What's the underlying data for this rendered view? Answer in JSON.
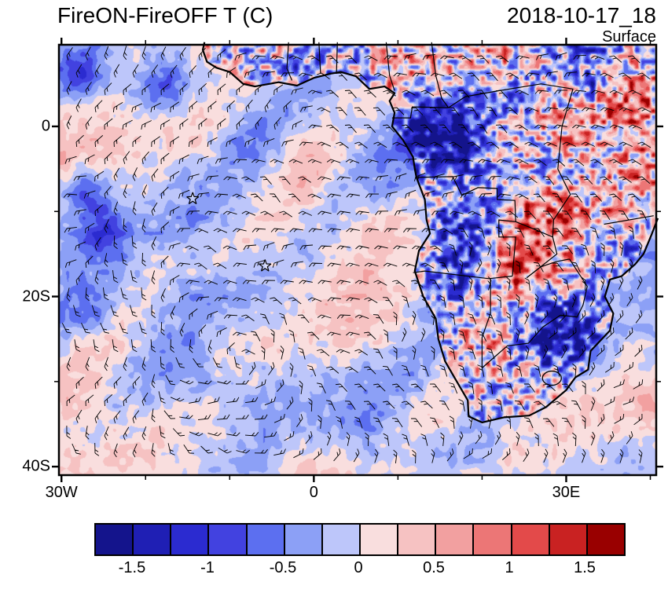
{
  "header": {
    "title": "FireON-FireOFF T (C)",
    "date": "2018-10-17_18",
    "level": "Surface"
  },
  "axes": {
    "y_ticks": [
      {
        "label": "0",
        "lat": 0
      },
      {
        "label": "20S",
        "lat": -20
      },
      {
        "label": "40S",
        "lat": -40
      }
    ],
    "x_ticks": [
      {
        "label": "30W",
        "lon": -30
      },
      {
        "label": "0",
        "lon": 0
      },
      {
        "label": "30E",
        "lon": 30
      }
    ]
  },
  "colorbar": {
    "cell_colors": [
      "#14148C",
      "#1F1FB4",
      "#2B2BD0",
      "#4242E0",
      "#5C6FF0",
      "#8CA0F6",
      "#BDC6FA",
      "#F9DEDE",
      "#F6C2C2",
      "#F2A0A0",
      "#EC7676",
      "#E34A4A",
      "#C92222",
      "#990000"
    ],
    "tick_labels": [
      "-1.5",
      "-1",
      "-0.5",
      "0",
      "0.5",
      "1",
      "1.5"
    ],
    "min": -1.75,
    "max": 1.75,
    "step": 0.25
  },
  "chart_data": {
    "type": "heatmap",
    "title": "FireON-FireOFF T (C)",
    "timestamp": "2018-10-17_18",
    "level": "Surface",
    "variable": "Surface temperature difference, FireON minus FireOFF simulation",
    "units": "C",
    "lon_range": [
      -30.3,
      40.7
    ],
    "lat_range": [
      -41.0,
      9.6
    ],
    "palette_levels": [
      -1.75,
      -1.5,
      -1.25,
      -1.0,
      -0.75,
      -0.5,
      -0.25,
      0,
      0.25,
      0.5,
      0.75,
      1.0,
      1.25,
      1.5,
      1.75
    ],
    "overlays": [
      "wind-barbs",
      "coastlines",
      "country-borders"
    ],
    "markers": [
      {
        "symbol": "star",
        "lon": -14.4,
        "lat": -8.5
      },
      {
        "symbol": "star",
        "lon": -5.8,
        "lat": -16.4
      }
    ],
    "notable_anomalies": [
      {
        "lon": 17,
        "lat": -2,
        "radius_deg": 5.1,
        "amplitude_c": -1.3
      },
      {
        "lon": 14,
        "lat": 1.5,
        "radius_deg": 3.7,
        "amplitude_c": -1.0
      },
      {
        "lon": 18.5,
        "lat": -14,
        "radius_deg": 4.5,
        "amplitude_c": -1.1
      },
      {
        "lon": 29,
        "lat": -24,
        "radius_deg": 4.5,
        "amplitude_c": -1.4
      },
      {
        "lon": 23.5,
        "lat": -14.5,
        "radius_deg": 3.9,
        "amplitude_c": 1.5
      },
      {
        "lon": 27,
        "lat": -10,
        "radius_deg": 4.2,
        "amplitude_c": 0.9
      },
      {
        "lon": 37.5,
        "lat": 1.5,
        "radius_deg": 5.1,
        "amplitude_c": 0.9
      },
      {
        "lon": 33,
        "lat": 4.5,
        "radius_deg": 2.8,
        "amplitude_c": -0.9
      },
      {
        "lon": -27.5,
        "lat": -7.5,
        "radius_deg": 2.6,
        "amplitude_c": -0.75
      },
      {
        "lon": -25.5,
        "lat": -12.5,
        "radius_deg": 3.3,
        "amplitude_c": -0.65
      },
      {
        "lon": -27,
        "lat": -22,
        "radius_deg": 3.0,
        "amplitude_c": -0.7
      },
      {
        "lon": 7,
        "lat": -37,
        "radius_deg": 3.9,
        "amplitude_c": -0.55
      },
      {
        "lon": -14,
        "lat": -29,
        "radius_deg": 3.5,
        "amplitude_c": -0.5
      },
      {
        "lon": 0.5,
        "lat": -5.5,
        "radius_deg": 4.5,
        "amplitude_c": 0.45
      },
      {
        "lon": -18,
        "lat": 5,
        "radius_deg": 3.7,
        "amplitude_c": -0.7
      },
      {
        "lon": -28,
        "lat": 6.5,
        "radius_deg": 2.8,
        "amplitude_c": -0.8
      }
    ]
  }
}
